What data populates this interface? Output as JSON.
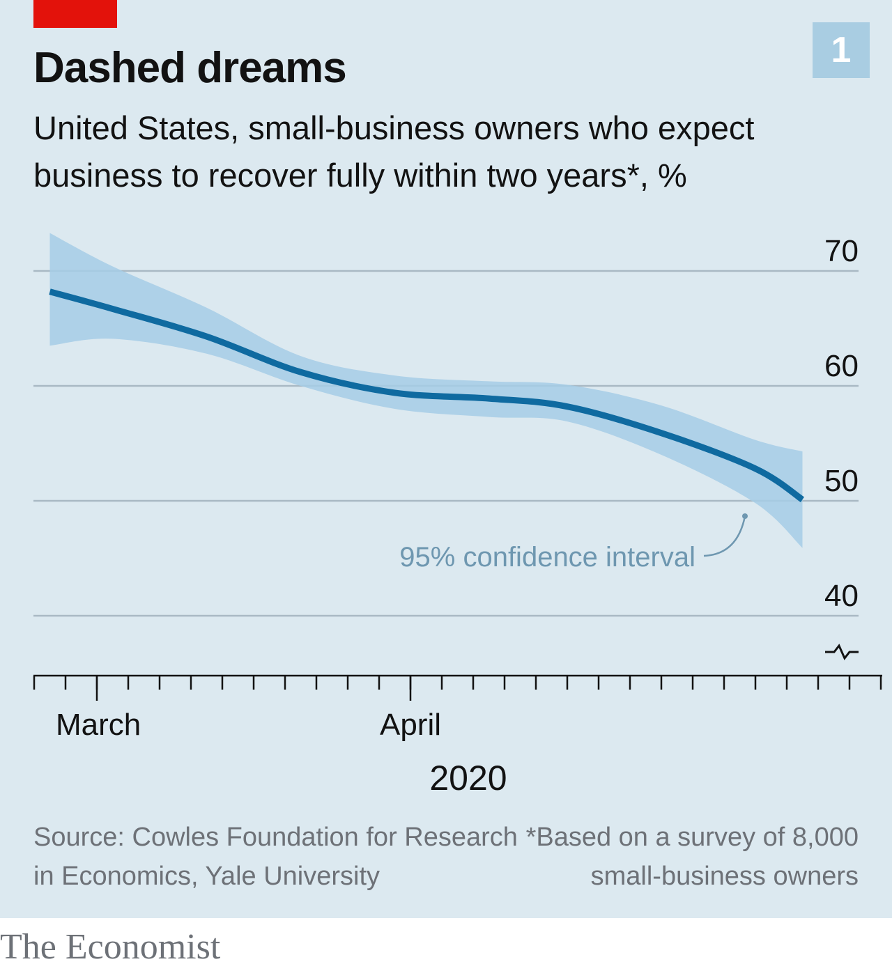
{
  "chart": {
    "number": "1",
    "title": "Dashed dreams",
    "subtitle": "United States, small-business owners who expect business to recover fully within two years*, %",
    "annotation": "95% confidence interval",
    "source": "Source: Cowles Foundation for Research in Economics, Yale University",
    "footnote": "*Based on a survey of 8,000 small-business owners",
    "brand": "The Economist"
  },
  "colors": {
    "background": "#dce9f0",
    "accent_red": "#e3120b",
    "number_box": "#a9cde2",
    "line": "#0f6aa0",
    "band": "#a6cce6",
    "grid": "#a9b9c4",
    "annotation": "#6e97b0",
    "text": "#121212",
    "muted": "#6d7177"
  },
  "chart_data": {
    "type": "line",
    "y_axis": {
      "ylim": [
        40,
        70
      ],
      "ticks": [
        40,
        50,
        60,
        70
      ],
      "labels": [
        "40",
        "50",
        "60",
        "70"
      ],
      "position": "right",
      "broken_axis_marker": true
    },
    "x_axis": {
      "start": "2020-03-08",
      "end": "2020-05-01",
      "major_ticks": [
        "2020-03-12",
        "2020-04-01"
      ],
      "labels": [
        {
          "text": "March",
          "date": "2020-03-08"
        },
        {
          "text": "April",
          "date": "2020-04-01"
        }
      ],
      "year_label": "2020"
    },
    "grid": true,
    "series": [
      {
        "points": [
          {
            "x": "2020-03-09",
            "y": 68.2
          },
          {
            "x": "2020-03-13",
            "y": 66.7
          },
          {
            "x": "2020-03-19",
            "y": 64.3
          },
          {
            "x": "2020-03-25",
            "y": 61.2
          },
          {
            "x": "2020-03-31",
            "y": 59.4
          },
          {
            "x": "2020-04-06",
            "y": 58.9
          },
          {
            "x": "2020-04-11",
            "y": 58.2
          },
          {
            "x": "2020-04-17",
            "y": 55.9
          },
          {
            "x": "2020-04-23",
            "y": 52.8
          },
          {
            "x": "2020-04-26",
            "y": 50.1
          }
        ]
      }
    ],
    "confidence_band": {
      "points": [
        {
          "x": "2020-03-09",
          "lower": 63.5,
          "upper": 73.3
        },
        {
          "x": "2020-03-13",
          "lower": 64.1,
          "upper": 70.4
        },
        {
          "x": "2020-03-19",
          "lower": 62.8,
          "upper": 66.8
        },
        {
          "x": "2020-03-25",
          "lower": 60.0,
          "upper": 62.6
        },
        {
          "x": "2020-03-31",
          "lower": 58.0,
          "upper": 60.9
        },
        {
          "x": "2020-04-06",
          "lower": 57.3,
          "upper": 60.4
        },
        {
          "x": "2020-04-11",
          "lower": 56.9,
          "upper": 60.1
        },
        {
          "x": "2020-04-17",
          "lower": 54.0,
          "upper": 58.3
        },
        {
          "x": "2020-04-23",
          "lower": 49.8,
          "upper": 55.3
        },
        {
          "x": "2020-04-26",
          "lower": 45.9,
          "upper": 54.3
        }
      ]
    }
  }
}
